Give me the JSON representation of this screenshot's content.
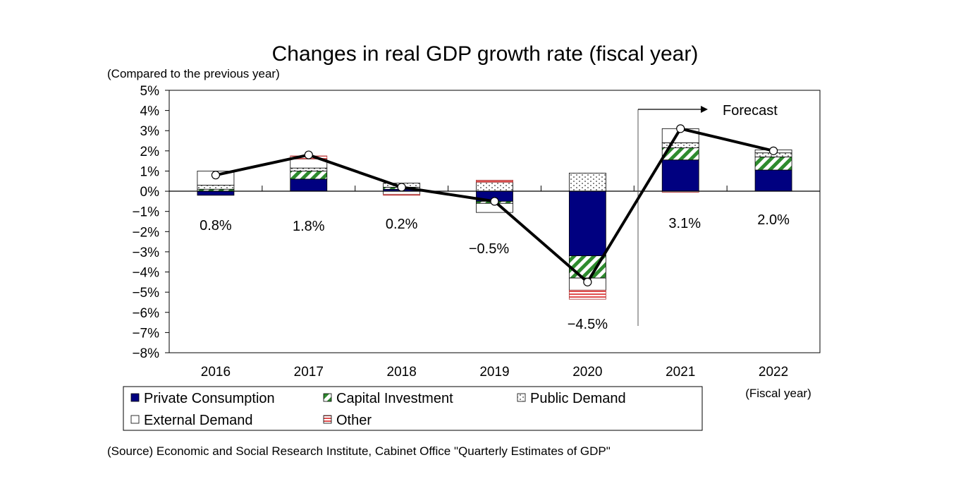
{
  "chart_data": {
    "type": "bar",
    "stacked": true,
    "title": "Changes in real GDP growth rate (fiscal year)",
    "ylabel": "(Compared to the previous year)",
    "xlabel": "(Fiscal year)",
    "ylim": [
      -8,
      5
    ],
    "yticks": [
      "5%",
      "4%",
      "3%",
      "2%",
      "1%",
      "0%",
      "−1%",
      "−2%",
      "−3%",
      "−4%",
      "−5%",
      "−6%",
      "−7%",
      "−8%"
    ],
    "categories": [
      "2016",
      "2017",
      "2018",
      "2019",
      "2020",
      "2021",
      "2022"
    ],
    "series": [
      {
        "name": "Private Consumption",
        "color": "#000080",
        "values": [
          -0.2,
          0.6,
          0.1,
          -0.5,
          -3.2,
          1.55,
          1.05
        ]
      },
      {
        "name": "Capital Investment",
        "color": "#2e8b2e",
        "values": [
          0.1,
          0.4,
          0.1,
          -0.1,
          -1.1,
          0.6,
          0.65
        ]
      },
      {
        "name": "Public Demand",
        "color": "#ffffff",
        "values": [
          0.2,
          0.15,
          0.2,
          0.45,
          0.9,
          0.25,
          0.2
        ]
      },
      {
        "name": "External Demand",
        "color": "#ffffff",
        "values": [
          0.7,
          0.45,
          -0.15,
          -0.45,
          -0.6,
          0.7,
          0.15
        ]
      },
      {
        "name": "Other",
        "color": "#e05050",
        "values": [
          0,
          0.15,
          -0.05,
          0.1,
          -0.45,
          -0.05,
          0
        ]
      }
    ],
    "total_line": {
      "values": [
        0.8,
        1.8,
        0.2,
        -0.5,
        -4.5,
        3.1,
        2.0
      ],
      "labels": [
        "0.8%",
        "1.8%",
        "0.2%",
        "−0.5%",
        "−4.5%",
        "3.1%",
        "2.0%"
      ]
    },
    "annotation": "Forecast",
    "legend_position": "bottom",
    "grid": false
  },
  "source": "(Source) Economic and Social Research Institute,  Cabinet Office \"Quarterly Estimates of GDP\""
}
